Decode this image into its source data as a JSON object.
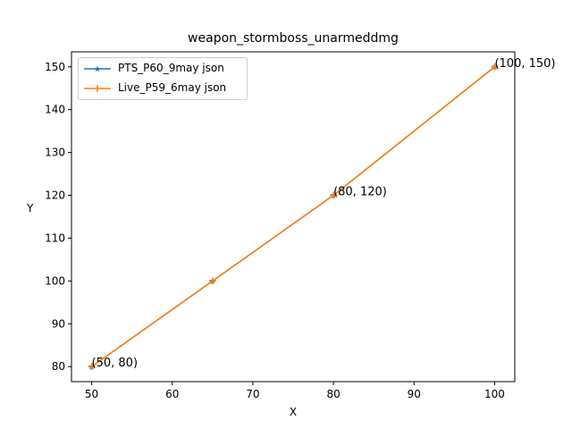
{
  "chart_data": {
    "type": "line",
    "title": "weapon_stormboss_unarmeddmg",
    "xlabel": "X",
    "ylabel": "Y",
    "xlim": [
      47.5,
      102.5
    ],
    "ylim": [
      76.5,
      153.5
    ],
    "xticks": [
      50,
      60,
      70,
      80,
      90,
      100
    ],
    "yticks": [
      80,
      90,
      100,
      110,
      120,
      130,
      140,
      150
    ],
    "grid": false,
    "legend_position": "top-left",
    "series": [
      {
        "name": "PTS_P60_9may json",
        "color": "#1f77b4",
        "marker": "star",
        "x": [
          50,
          65,
          80,
          100
        ],
        "y": [
          80,
          100,
          120,
          150
        ]
      },
      {
        "name": "Live_P59_6may json",
        "color": "#ff7f0e",
        "marker": "plus",
        "x": [
          50,
          65,
          80,
          100
        ],
        "y": [
          80,
          100,
          120,
          150
        ]
      }
    ],
    "annotations": [
      {
        "text": "(50, 80)",
        "x": 50,
        "y": 80
      },
      {
        "text": "(80, 120)",
        "x": 80,
        "y": 120
      },
      {
        "text": "(100, 150)",
        "x": 100,
        "y": 150
      }
    ]
  }
}
